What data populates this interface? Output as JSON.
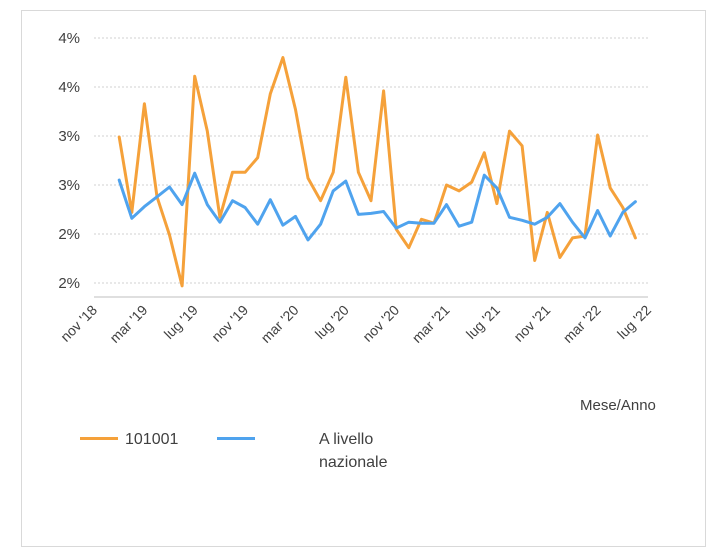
{
  "chart_data": {
    "type": "line",
    "title": "",
    "xlabel": "Mese/Anno",
    "ylabel": "",
    "x_tick_labels": [
      "nov '18",
      "mar '19",
      "lug '19",
      "nov '19",
      "mar '20",
      "lug '20",
      "nov '20",
      "mar '21",
      "lug '21",
      "nov '21",
      "mar '22",
      "lug '22"
    ],
    "y_tick_labels": [
      "2%",
      "2%",
      "3%",
      "3%",
      "4%",
      "4%"
    ],
    "y_tick_values": [
      1.5,
      2.0,
      2.5,
      3.0,
      3.5,
      4.0
    ],
    "ylim": [
      1.5,
      4.0
    ],
    "grid": true,
    "legend_position": "bottom-left",
    "series": [
      {
        "name": "101001",
        "color": "#f5a13a",
        "points": [
          [
            "2019-01",
            2.99
          ],
          [
            "2019-02",
            2.22
          ],
          [
            "2019-03",
            3.33
          ],
          [
            "2019-04",
            2.38
          ],
          [
            "2019-05",
            1.99
          ],
          [
            "2019-06",
            1.47
          ],
          [
            "2019-07",
            3.61
          ],
          [
            "2019-08",
            3.05
          ],
          [
            "2019-09",
            2.17
          ],
          [
            "2019-10",
            2.63
          ],
          [
            "2019-11",
            2.63
          ],
          [
            "2019-12",
            2.78
          ],
          [
            "2020-01",
            3.43
          ],
          [
            "2020-02",
            3.8
          ],
          [
            "2020-03",
            3.27
          ],
          [
            "2020-04",
            2.57
          ],
          [
            "2020-05",
            2.34
          ],
          [
            "2020-06",
            2.63
          ],
          [
            "2020-07",
            3.6
          ],
          [
            "2020-08",
            2.63
          ],
          [
            "2020-09",
            2.34
          ],
          [
            "2020-10",
            3.46
          ],
          [
            "2020-11",
            2.05
          ],
          [
            "2020-12",
            1.86
          ],
          [
            "2021-01",
            2.15
          ],
          [
            "2021-02",
            2.11
          ],
          [
            "2021-03",
            2.5
          ],
          [
            "2021-04",
            2.44
          ],
          [
            "2021-05",
            2.53
          ],
          [
            "2021-06",
            2.83
          ],
          [
            "2021-07",
            2.31
          ],
          [
            "2021-08",
            3.05
          ],
          [
            "2021-09",
            2.9
          ],
          [
            "2021-10",
            1.73
          ],
          [
            "2021-11",
            2.22
          ],
          [
            "2021-12",
            1.76
          ],
          [
            "2022-01",
            1.96
          ],
          [
            "2022-02",
            1.98
          ],
          [
            "2022-03",
            3.01
          ],
          [
            "2022-04",
            2.47
          ],
          [
            "2022-05",
            2.27
          ],
          [
            "2022-06",
            1.96
          ]
        ]
      },
      {
        "name": "A livello nazionale",
        "color": "#4fa3ee",
        "points": [
          [
            "2019-01",
            2.55
          ],
          [
            "2019-02",
            2.16
          ],
          [
            "2019-03",
            2.28
          ],
          [
            "2019-04",
            2.38
          ],
          [
            "2019-05",
            2.48
          ],
          [
            "2019-06",
            2.3
          ],
          [
            "2019-07",
            2.62
          ],
          [
            "2019-08",
            2.3
          ],
          [
            "2019-09",
            2.12
          ],
          [
            "2019-10",
            2.34
          ],
          [
            "2019-11",
            2.27
          ],
          [
            "2019-12",
            2.1
          ],
          [
            "2020-01",
            2.35
          ],
          [
            "2020-02",
            2.09
          ],
          [
            "2020-03",
            2.18
          ],
          [
            "2020-04",
            1.94
          ],
          [
            "2020-05",
            2.1
          ],
          [
            "2020-06",
            2.44
          ],
          [
            "2020-07",
            2.54
          ],
          [
            "2020-08",
            2.2
          ],
          [
            "2020-09",
            2.21
          ],
          [
            "2020-10",
            2.23
          ],
          [
            "2020-11",
            2.06
          ],
          [
            "2020-12",
            2.12
          ],
          [
            "2021-01",
            2.11
          ],
          [
            "2021-02",
            2.11
          ],
          [
            "2021-03",
            2.3
          ],
          [
            "2021-04",
            2.08
          ],
          [
            "2021-05",
            2.12
          ],
          [
            "2021-06",
            2.6
          ],
          [
            "2021-07",
            2.47
          ],
          [
            "2021-08",
            2.17
          ],
          [
            "2021-09",
            2.14
          ],
          [
            "2021-10",
            2.1
          ],
          [
            "2021-11",
            2.17
          ],
          [
            "2021-12",
            2.31
          ],
          [
            "2022-01",
            2.12
          ],
          [
            "2022-02",
            1.96
          ],
          [
            "2022-03",
            2.24
          ],
          [
            "2022-04",
            1.98
          ],
          [
            "2022-05",
            2.22
          ],
          [
            "2022-06",
            2.33
          ]
        ]
      }
    ]
  }
}
